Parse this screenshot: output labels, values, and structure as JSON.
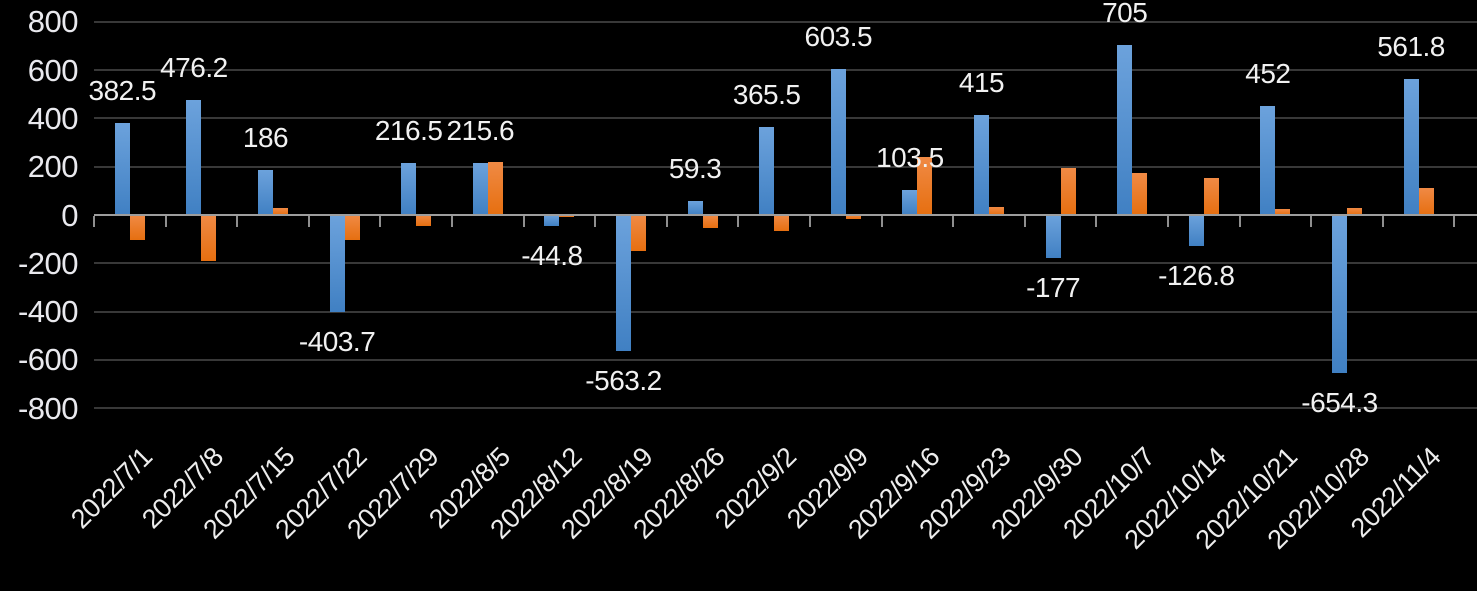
{
  "chart_data": {
    "type": "bar",
    "title": "",
    "legend": "none",
    "grid": true,
    "background": "#000000",
    "grid_color": "#383838",
    "axis_color": "#9D9D9D",
    "tick_color": "#8F8F8F",
    "ytick_label_color": "#E9E9EE",
    "xtick_label_color": "#EDEDED",
    "data_label_color": "#F1F1F1",
    "ylim": [
      -800,
      800
    ],
    "ytick_step": 200,
    "ytick_labels": [
      "800",
      "600",
      "400",
      "200",
      "0",
      "-200",
      "-400",
      "-600",
      "-800"
    ],
    "categories": [
      "2022/7/1",
      "2022/7/8",
      "2022/7/15",
      "2022/7/22",
      "2022/7/29",
      "2022/8/5",
      "2022/8/12",
      "2022/8/19",
      "2022/8/26",
      "2022/9/2",
      "2022/9/9",
      "2022/9/16",
      "2022/9/23",
      "2022/9/30",
      "2022/10/7",
      "2022/10/14",
      "2022/10/21",
      "2022/10/28",
      "2022/11/4"
    ],
    "series": [
      {
        "name": "blue-series",
        "color_top": "#6CA2DC",
        "color_bottom": "#4080C3",
        "values": [
          382.5,
          476.2,
          186,
          -403.7,
          216.5,
          215.6,
          -44.8,
          -563.2,
          59.3,
          365.5,
          603.5,
          103.5,
          415,
          -177,
          705,
          -126.8,
          452,
          -654.3,
          561.8
        ],
        "data_labels": [
          "382.5",
          "476.2",
          "186",
          "-403.7",
          "216.5",
          "215.6",
          "-44.8",
          "-563.2",
          "59.3",
          "365.5",
          "603.5",
          "103.5",
          "415",
          "-177",
          "705",
          "-126.8",
          "452",
          "-654.3",
          "561.8"
        ]
      },
      {
        "name": "orange-series",
        "color_top": "#F08A45",
        "color_bottom": "#E66F10",
        "values": [
          -105,
          -190,
          30,
          -105,
          -45,
          218,
          -10,
          -148,
          -55,
          -65,
          -15,
          240,
          35,
          195,
          175,
          155,
          25,
          30,
          113
        ],
        "data_labels": null
      }
    ]
  }
}
